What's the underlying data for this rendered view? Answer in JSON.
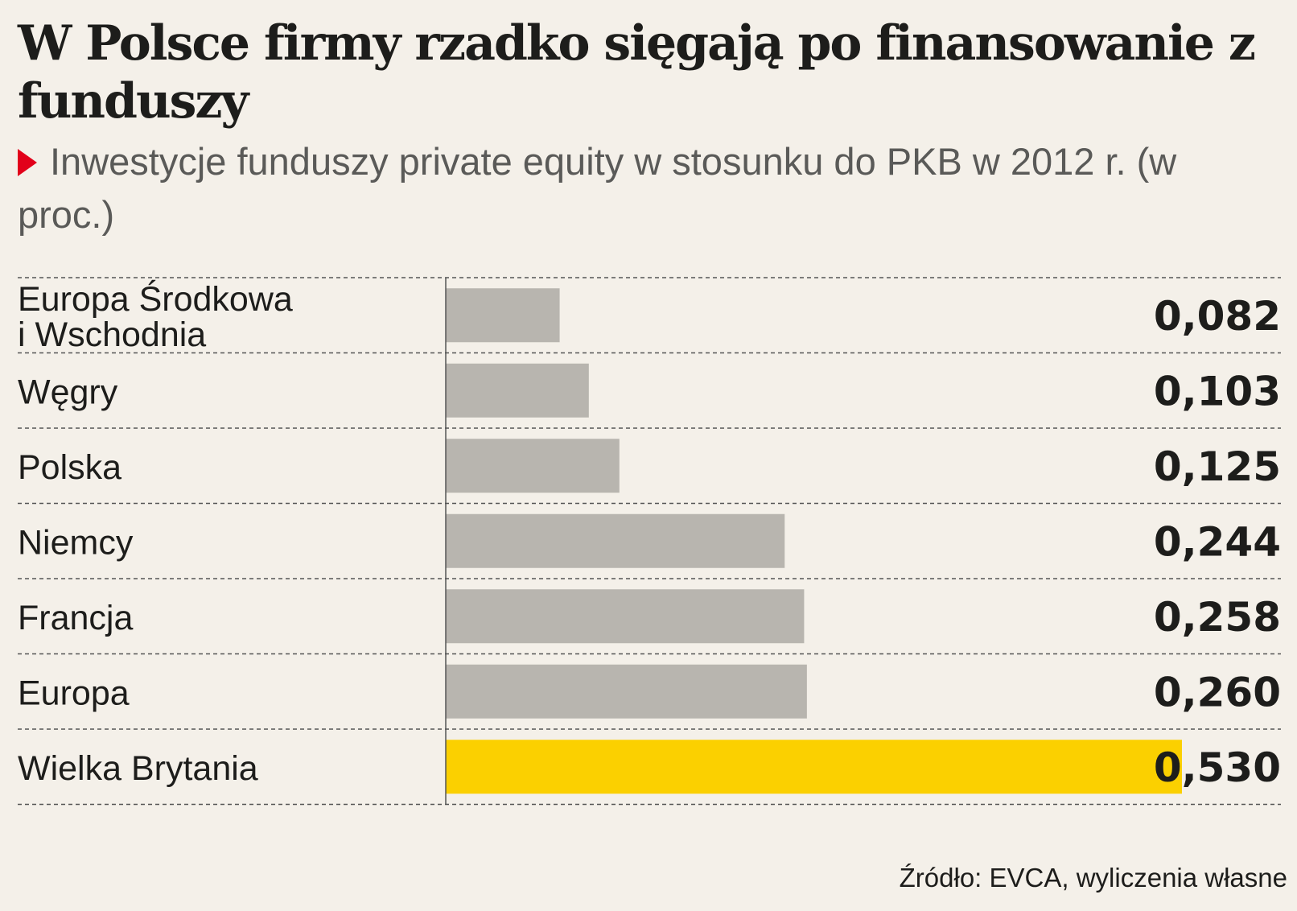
{
  "title": "W Polsce firmy rzadko sięgają po finansowanie z funduszy",
  "subtitle": "Inwestycje funduszy private equity w stosunku do PKB w 2012 r. (w proc.)",
  "source": "Źródło: EVCA, wyliczenia własne",
  "colors": {
    "background": "#f4f0e9",
    "bar_default": "#b8b5af",
    "bar_highlight": "#fbd000",
    "marker": "#e2001a",
    "text": "#1d1d1b",
    "subtitle_text": "#5a5a58"
  },
  "chart_data": {
    "type": "bar",
    "orientation": "horizontal",
    "categories": [
      "Europa Środkowa\ni Wschodnia",
      "Węgry",
      "Polska",
      "Niemcy",
      "Francja",
      "Europa",
      "Wielka Brytania"
    ],
    "values": [
      0.082,
      0.103,
      0.125,
      0.244,
      0.258,
      0.26,
      0.53
    ],
    "value_labels": [
      "0,082",
      "0,103",
      "0,125",
      "0,244",
      "0,258",
      "0,260",
      "0,530"
    ],
    "highlight_category": "Wielka Brytania",
    "xlim": [
      0,
      0.53
    ],
    "grid": "dashed row separators",
    "legend": "none"
  }
}
